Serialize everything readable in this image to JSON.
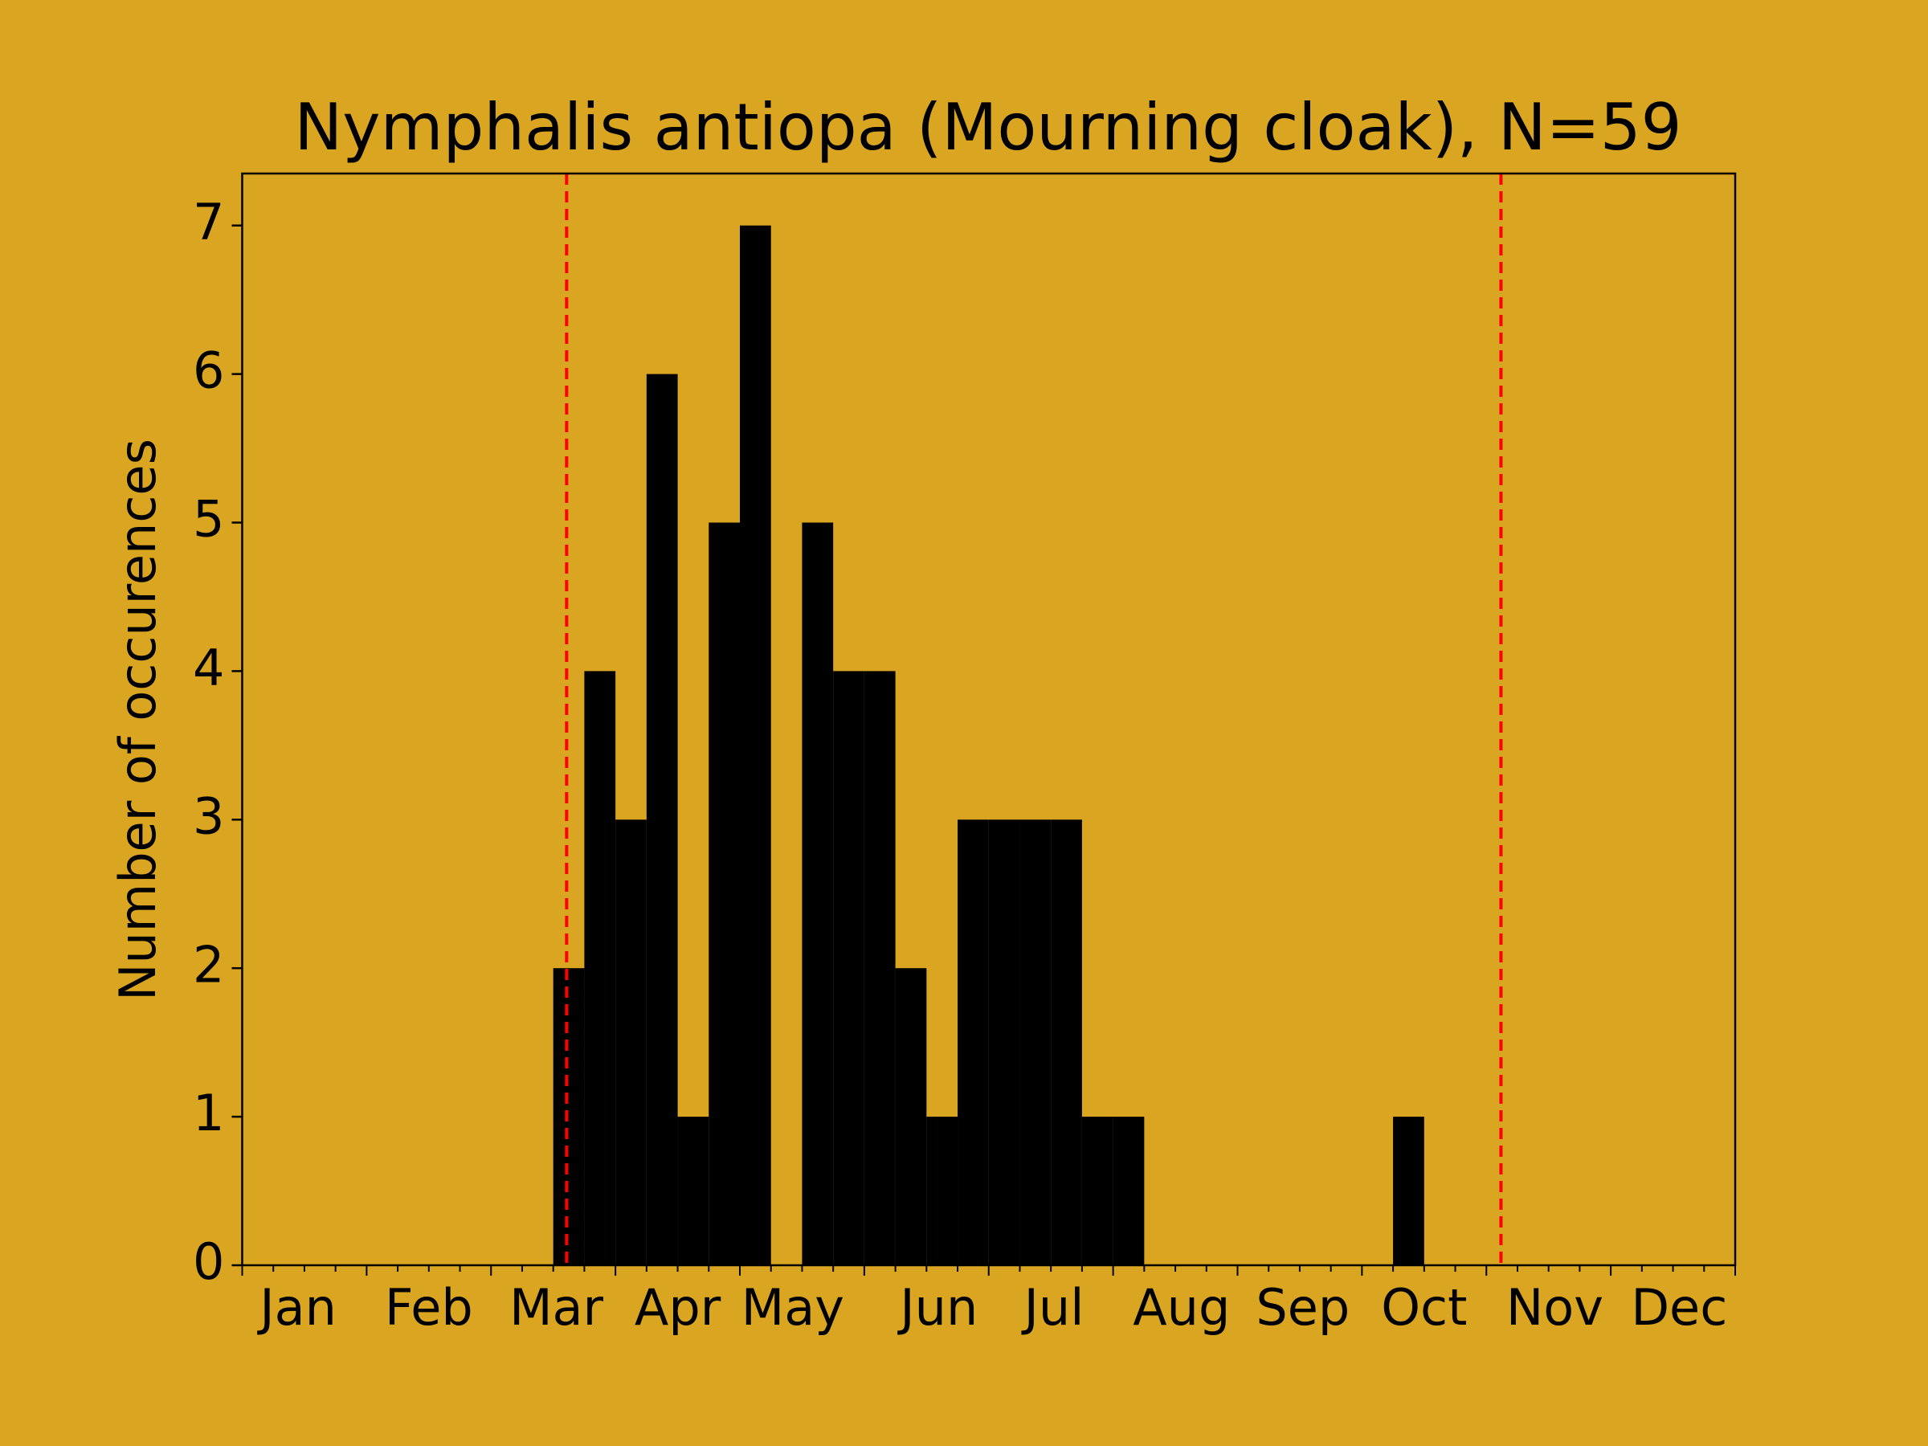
{
  "chart_data": {
    "type": "histogram",
    "title": "Nymphalis antiopa (Mourning cloak), N=59",
    "ylabel": "Number of occurences",
    "bins": [
      0,
      1,
      2,
      3,
      4,
      5,
      6,
      7,
      8,
      9,
      10,
      11,
      12,
      13,
      14,
      15,
      16,
      17,
      18,
      19,
      20,
      21,
      22,
      23,
      24,
      25,
      26,
      27,
      28,
      29,
      30,
      31,
      32,
      33,
      34,
      35,
      36,
      37,
      38,
      39,
      40,
      41,
      42,
      43,
      44,
      45,
      46,
      47,
      48
    ],
    "values": [
      0,
      0,
      0,
      0,
      0,
      0,
      0,
      0,
      0,
      0,
      2,
      4,
      3,
      6,
      1,
      5,
      7,
      0,
      5,
      4,
      4,
      2,
      1,
      3,
      3,
      3,
      3,
      1,
      1,
      0,
      0,
      0,
      0,
      0,
      0,
      0,
      0,
      1,
      0,
      0,
      0,
      0,
      0,
      0,
      0,
      0,
      0,
      0
    ],
    "color": "#000000",
    "xlim": [
      0,
      48
    ],
    "xticks": [
      {
        "value": 1.8,
        "label": "Jan"
      },
      {
        "value": 6,
        "label": "Feb"
      },
      {
        "value": 10.1,
        "label": "Mar"
      },
      {
        "value": 14,
        "label": "Apr"
      },
      {
        "value": 17.7,
        "label": "May"
      },
      {
        "value": 22.4,
        "label": "Jun"
      },
      {
        "value": 26.1,
        "label": "Jul"
      },
      {
        "value": 30.2,
        "label": "Aug"
      },
      {
        "value": 34.1,
        "label": "Sep"
      },
      {
        "value": 38,
        "label": "Oct"
      },
      {
        "value": 42.2,
        "label": "Nov"
      },
      {
        "value": 46.2,
        "label": "Dec"
      }
    ],
    "minor_xticks": [
      0,
      1,
      2,
      3,
      4,
      5,
      6,
      7,
      8,
      9,
      10,
      11,
      12,
      13,
      14,
      15,
      16,
      17,
      18,
      19,
      20,
      21,
      22,
      23,
      24,
      25,
      26,
      27,
      28,
      29,
      30,
      31,
      32,
      33,
      34,
      35,
      36,
      37,
      38,
      39,
      40,
      41,
      42,
      43,
      44,
      45,
      46,
      47,
      48
    ],
    "ylim": [
      0,
      7.35
    ],
    "yticks": [
      0,
      1,
      2,
      3,
      4,
      5,
      6,
      7
    ],
    "vlines": [
      10.43,
      40.47
    ],
    "vline_color": "#ff0000"
  }
}
